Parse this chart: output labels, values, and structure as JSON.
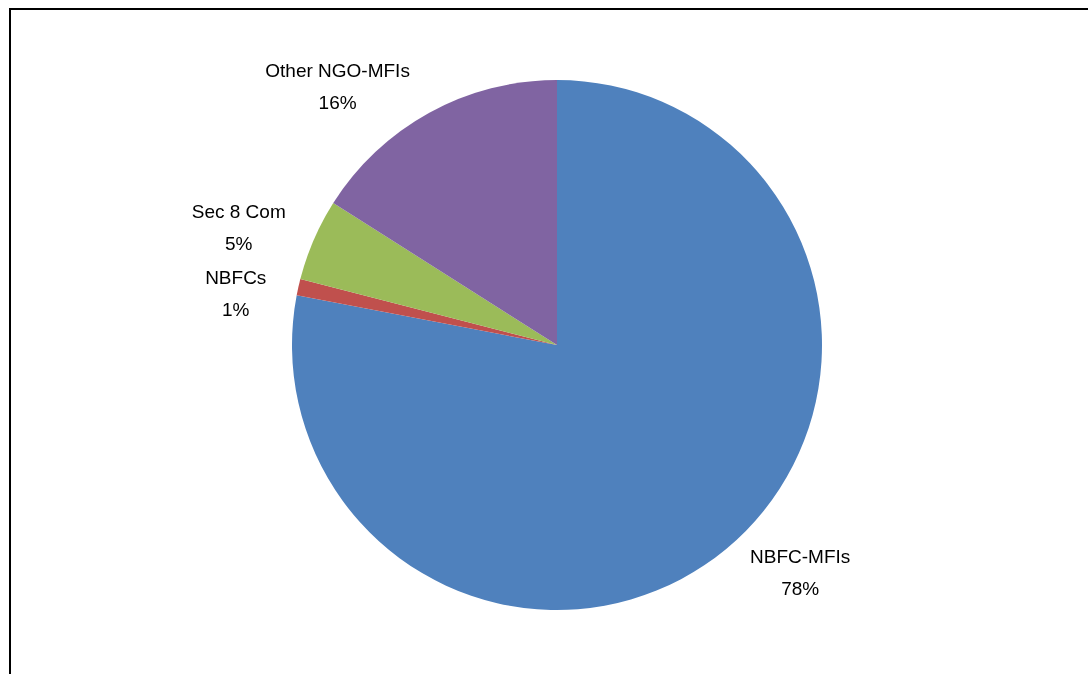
{
  "chart_data": {
    "type": "pie",
    "categories": [
      "NBFC-MFIs",
      "NBFCs",
      "Sec 8 Com",
      "Other NGO-MFIs"
    ],
    "values": [
      78,
      1,
      5,
      16
    ],
    "value_labels": [
      "78%",
      "1%",
      "5%",
      "16%"
    ],
    "colors": [
      "#4f81bd",
      "#c0504d",
      "#9bbb59",
      "#8064a2"
    ],
    "legend": false
  }
}
